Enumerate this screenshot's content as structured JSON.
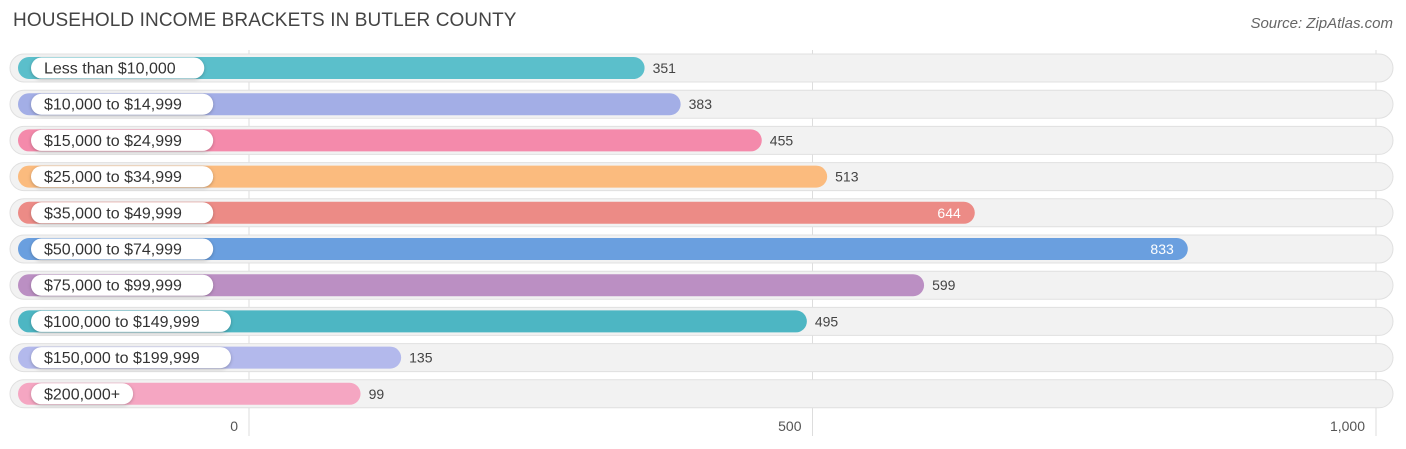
{
  "title": "HOUSEHOLD INCOME BRACKETS IN BUTLER COUNTY",
  "source": "Source: ZipAtlas.com",
  "chart_data": {
    "type": "bar",
    "orientation": "horizontal",
    "categories": [
      "Less than $10,000",
      "$10,000 to $14,999",
      "$15,000 to $24,999",
      "$25,000 to $34,999",
      "$35,000 to $49,999",
      "$50,000 to $74,999",
      "$75,000 to $99,999",
      "$100,000 to $149,999",
      "$150,000 to $199,999",
      "$200,000+"
    ],
    "values": [
      351,
      383,
      455,
      513,
      644,
      833,
      599,
      495,
      135,
      99
    ],
    "value_labels": [
      "351",
      "383",
      "455",
      "513",
      "644",
      "833",
      "599",
      "495",
      "135",
      "99"
    ],
    "colors": [
      "#5bbfcb",
      "#a3aee6",
      "#f48aab",
      "#fbbb7e",
      "#ec8b86",
      "#6a9fdf",
      "#bb8fc3",
      "#4db6c3",
      "#b3b9ec",
      "#f5a6c2"
    ],
    "xlim": [
      0,
      1000
    ],
    "xticks": [
      0,
      500,
      1000
    ],
    "xtick_labels": [
      "0",
      "500",
      "1,000"
    ],
    "grid": true,
    "legend": "none"
  }
}
